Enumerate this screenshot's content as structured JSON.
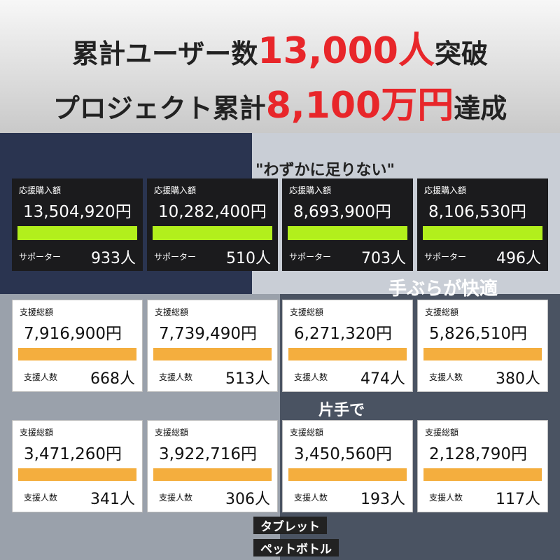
{
  "header": {
    "line1": {
      "lead": "累計ユーザー数",
      "highlight": "13,000人",
      "tail": "突破"
    },
    "line2": {
      "lead": "プロジェクト累計",
      "highlight": "8,100万円",
      "tail": "達成"
    }
  },
  "background_texts": [
    "\"わずかに足りない\"",
    "手ぶらが快適",
    "片手で",
    "タブレット",
    "ペットボトル"
  ],
  "rows": [
    {
      "style": "dark",
      "cards": [
        {
          "label": "応援購入額",
          "amount": "13,504,920円",
          "count_label": "サポーター",
          "count": "933人"
        },
        {
          "label": "応援購入額",
          "amount": "10,282,400円",
          "count_label": "サポーター",
          "count": "510人"
        },
        {
          "label": "応援購入額",
          "amount": "8,693,900円",
          "count_label": "サポーター",
          "count": "703人"
        },
        {
          "label": "応援購入額",
          "amount": "8,106,530円",
          "count_label": "サポーター",
          "count": "496人"
        }
      ]
    },
    {
      "style": "light",
      "cards": [
        {
          "label": "支援総額",
          "amount": "7,916,900円",
          "count_label": "支援人数",
          "count": "668人"
        },
        {
          "label": "支援総額",
          "amount": "7,739,490円",
          "count_label": "支援人数",
          "count": "513人"
        },
        {
          "label": "支援総額",
          "amount": "6,271,320円",
          "count_label": "支援人数",
          "count": "474人"
        },
        {
          "label": "支援総額",
          "amount": "5,826,510円",
          "count_label": "支援人数",
          "count": "380人"
        }
      ]
    },
    {
      "style": "light",
      "cards": [
        {
          "label": "支援総額",
          "amount": "3,471,260円",
          "count_label": "支援人数",
          "count": "341人"
        },
        {
          "label": "支援総額",
          "amount": "3,922,716円",
          "count_label": "支援人数",
          "count": "306人"
        },
        {
          "label": "支援総額",
          "amount": "3,450,560円",
          "count_label": "支援人数",
          "count": "193人"
        },
        {
          "label": "支援総額",
          "amount": "2,128,790円",
          "count_label": "支援人数",
          "count": "117人"
        }
      ]
    }
  ]
}
